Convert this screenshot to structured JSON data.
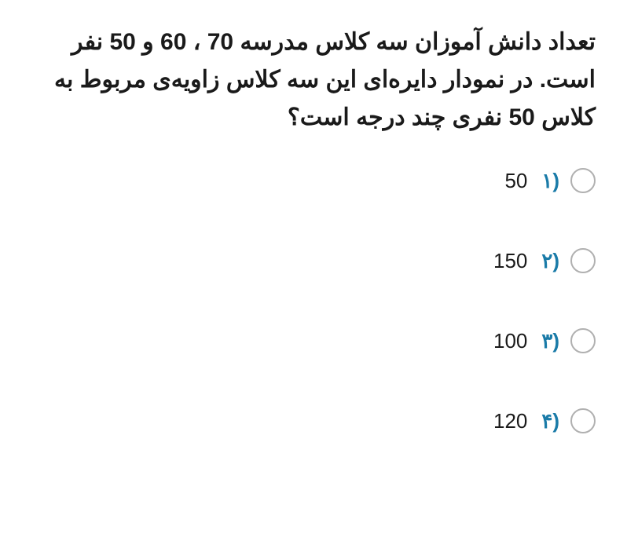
{
  "question": {
    "text": "تعداد دانش آموزان سه کلاس مدرسه 70 ، 60 و 50 نفر است. در نمودار دایره‌ای این سه کلاس زاویه‌ی مربوط به کلاس 50 نفری چند درجه است؟",
    "font_size": 30,
    "color": "#1a1a1a"
  },
  "options": [
    {
      "num": "۱)",
      "value": "50"
    },
    {
      "num": "۲)",
      "value": "150"
    },
    {
      "num": "۳)",
      "value": "100"
    },
    {
      "num": "۴)",
      "value": "120"
    }
  ],
  "styles": {
    "option_num_color": "#1a7ba8",
    "option_val_color": "#1a1a1a",
    "radio_border": "#b0b0b0",
    "background": "#ffffff",
    "option_font_size": 26,
    "radio_size": 32
  }
}
